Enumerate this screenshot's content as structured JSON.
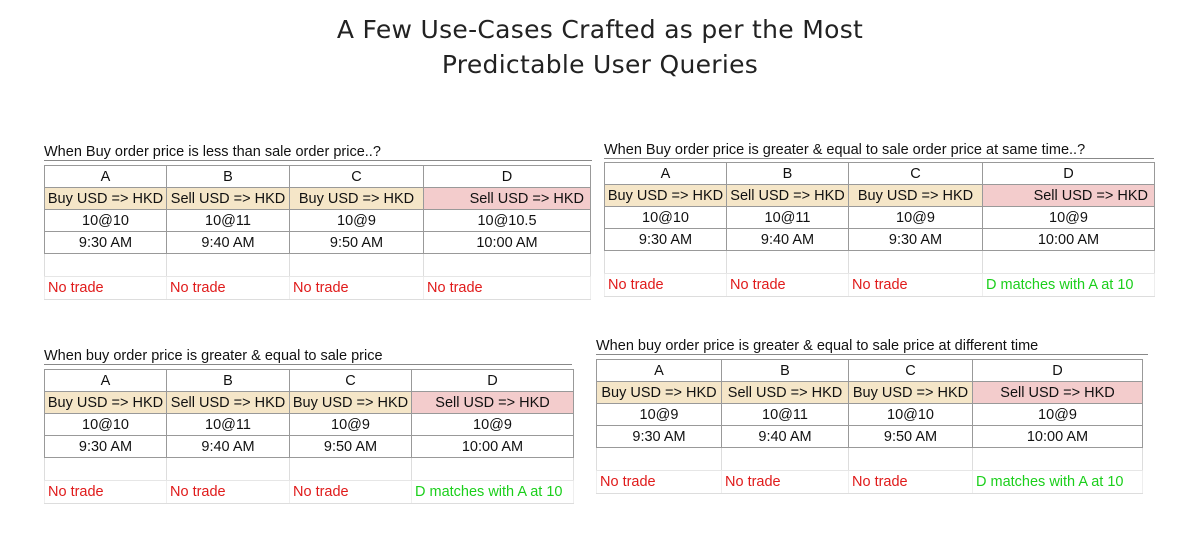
{
  "page": {
    "title_line1": "A Few Use-Cases Crafted as per the Most",
    "title_line2": "Predictable User Queries"
  },
  "columns": [
    "A",
    "B",
    "C",
    "D"
  ],
  "use_cases": [
    {
      "caption": "When Buy order price is less than sale order price..?",
      "roles": [
        "Buy USD => HKD",
        "Sell USD => HKD",
        "Buy USD => HKD",
        "Sell USD => HKD"
      ],
      "prices": [
        "10@10",
        "10@11",
        "10@9",
        "10@10.5"
      ],
      "times": [
        "9:30 AM",
        "9:40 AM",
        "9:50 AM",
        "10:00 AM"
      ],
      "results": [
        "No trade",
        "No trade",
        "No trade",
        "No trade"
      ]
    },
    {
      "caption": "When Buy order price is greater & equal to sale order price at same time..?",
      "roles": [
        "Buy USD => HKD",
        "Sell USD => HKD",
        "Buy USD => HKD",
        "Sell USD => HKD"
      ],
      "prices": [
        "10@10",
        "10@11",
        "10@9",
        "10@9"
      ],
      "times": [
        "9:30 AM",
        "9:40 AM",
        "9:30 AM",
        "10:00 AM"
      ],
      "results": [
        "No trade",
        "No trade",
        "No trade",
        "D matches with A at 10"
      ]
    },
    {
      "caption": "When buy order price is greater & equal to sale price",
      "roles": [
        "Buy USD => HKD",
        "Sell USD => HKD",
        "Buy USD => HKD",
        "Sell USD => HKD"
      ],
      "prices": [
        "10@10",
        "10@11",
        "10@9",
        "10@9"
      ],
      "times": [
        "9:30 AM",
        "9:40 AM",
        "9:50 AM",
        "10:00 AM"
      ],
      "results": [
        "No trade",
        "No trade",
        "No trade",
        "D matches with A at 10"
      ]
    },
    {
      "caption": "When buy order price is greater & equal to sale price at different time",
      "roles": [
        "Buy USD => HKD",
        "Sell USD => HKD",
        "Buy USD => HKD",
        "Sell USD => HKD"
      ],
      "prices": [
        "10@9",
        "10@11",
        "10@10",
        "10@9"
      ],
      "times": [
        "9:30 AM",
        "9:40 AM",
        "9:50 AM",
        "10:00 AM"
      ],
      "results": [
        "No trade",
        "No trade",
        "No trade",
        "D matches with A at 10"
      ]
    }
  ],
  "colors": {
    "buy_fill": "#f5e6c8",
    "sell_fill": "#f3cccc",
    "no_trade": "#e01b1b",
    "match": "#1bcf1b"
  }
}
